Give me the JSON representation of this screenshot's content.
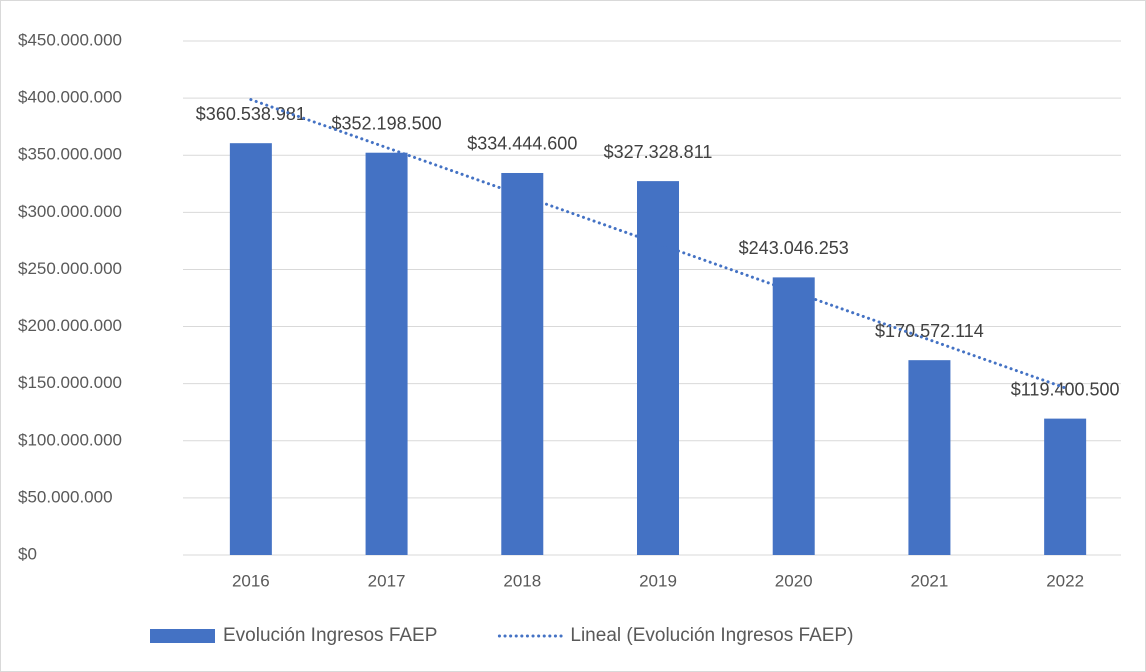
{
  "chart_data": {
    "type": "bar",
    "categories": [
      "2016",
      "2017",
      "2018",
      "2019",
      "2020",
      "2021",
      "2022"
    ],
    "series": [
      {
        "name": "Evolución Ingresos FAEP",
        "type": "bar",
        "color": "#4472c4",
        "values": [
          360538981,
          352198500,
          334444600,
          327328811,
          243046253,
          170572114,
          119400500
        ],
        "value_labels": [
          "$360.538.981",
          "$352.198.500",
          "$334.444.600",
          "$327.328.811",
          "$243.046.253",
          "$170.572.114",
          "$119.400.500"
        ]
      },
      {
        "name": "Lineal (Evolución Ingresos FAEP)",
        "type": "line",
        "style": "dotted",
        "color": "#4472c4",
        "values": [
          398700000,
          356700000,
          314600000,
          272500000,
          230400000,
          188400000,
          146300000
        ]
      }
    ],
    "ylim": [
      0,
      450000000
    ],
    "yticks": [
      {
        "value": 0,
        "label": "$0"
      },
      {
        "value": 50000000,
        "label": "$50.000.000"
      },
      {
        "value": 100000000,
        "label": "$100.000.000"
      },
      {
        "value": 150000000,
        "label": "$150.000.000"
      },
      {
        "value": 200000000,
        "label": "$200.000.000"
      },
      {
        "value": 250000000,
        "label": "$250.000.000"
      },
      {
        "value": 300000000,
        "label": "$300.000.000"
      },
      {
        "value": 350000000,
        "label": "$350.000.000"
      },
      {
        "value": 400000000,
        "label": "$400.000.000"
      },
      {
        "value": 450000000,
        "label": "$450.000.000"
      }
    ],
    "grid": true,
    "legend": "bottom"
  }
}
